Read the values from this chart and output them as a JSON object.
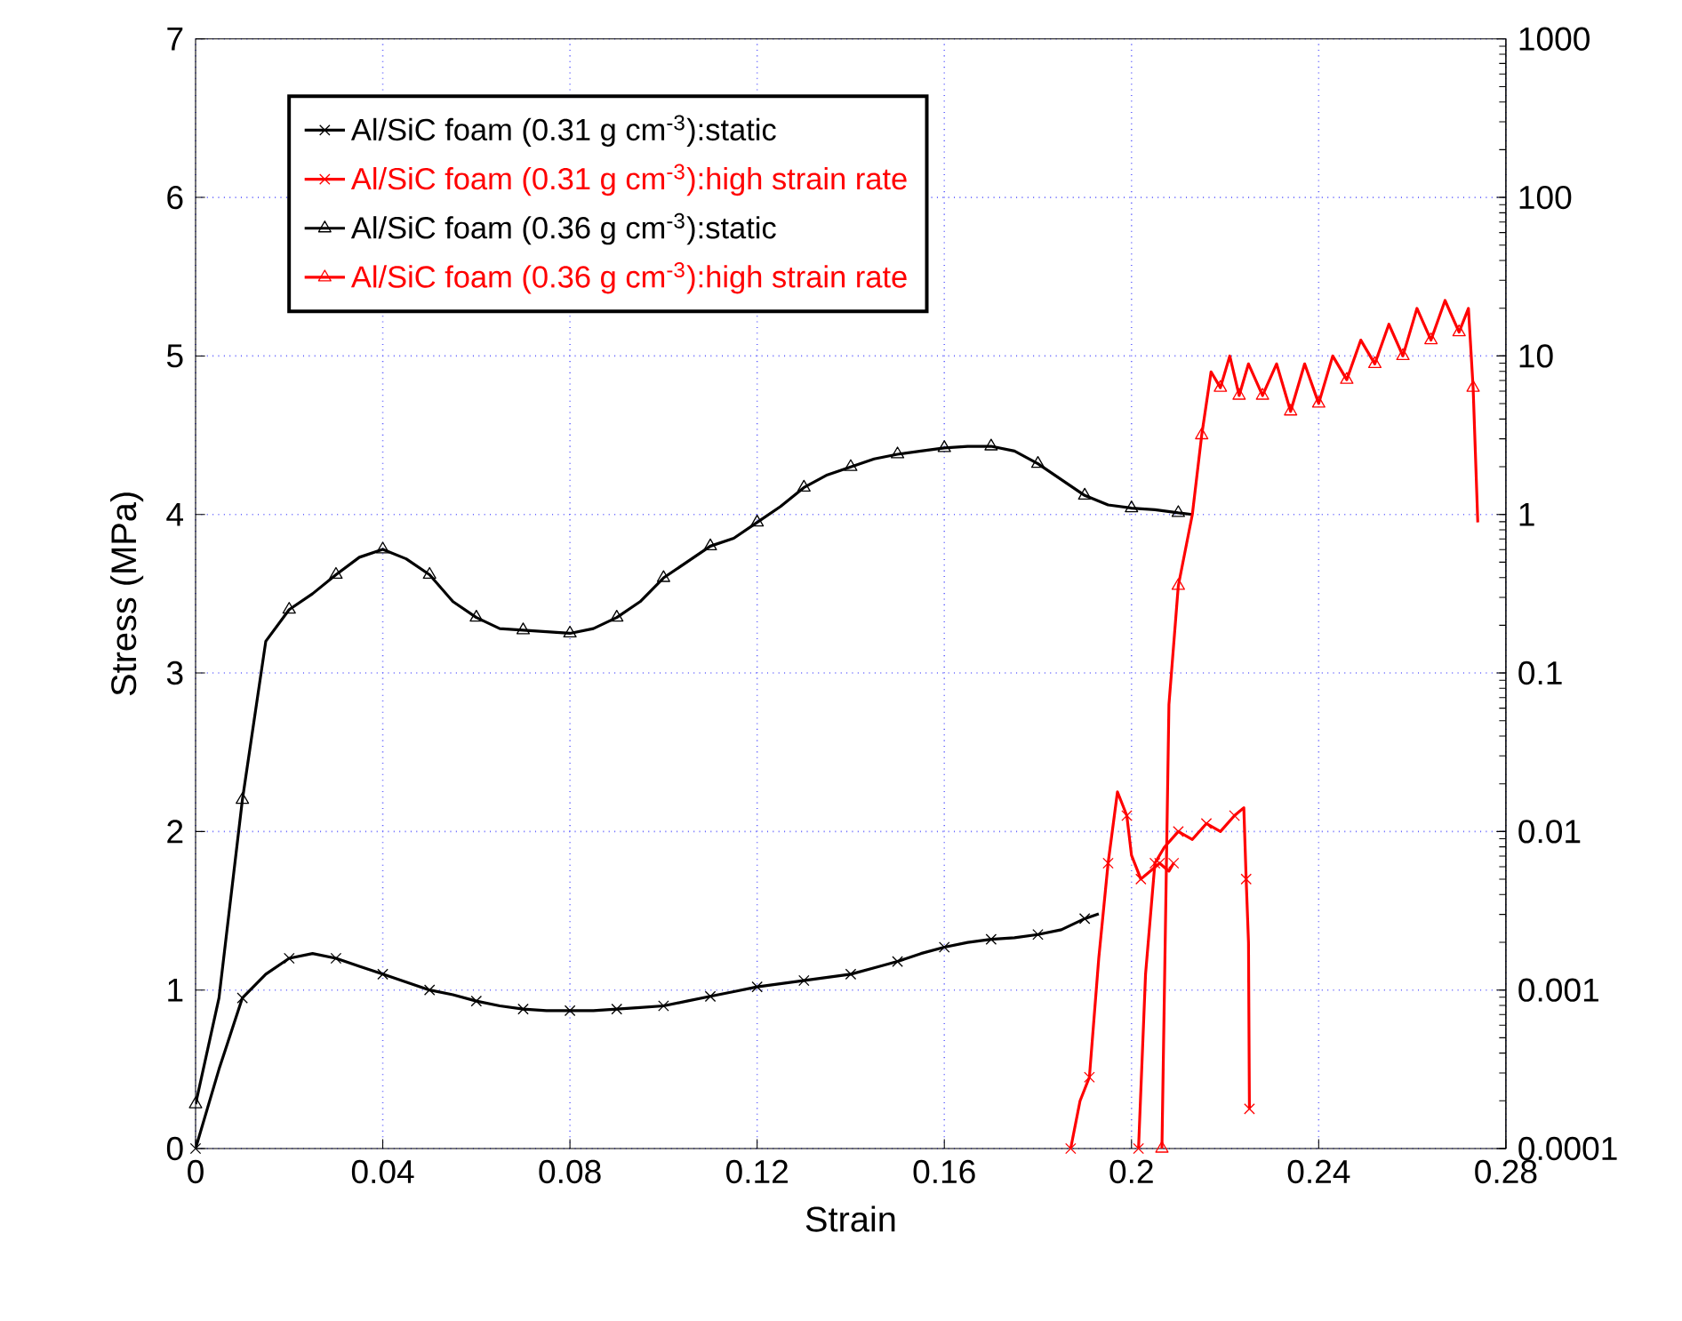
{
  "chart_data": {
    "type": "line",
    "xlabel": "Strain",
    "ylabel": "Stress (MPa)",
    "xlim": [
      0,
      0.28
    ],
    "ylim": [
      0,
      7
    ],
    "xticks": [
      0,
      0.04,
      0.08,
      0.12,
      0.16,
      0.2,
      0.24,
      0.28
    ],
    "yticks": [
      0,
      1,
      2,
      3,
      4,
      5,
      6,
      7
    ],
    "y2lim": [
      0.0001,
      1000
    ],
    "y2ticks": [
      0.0001,
      0.001,
      0.01,
      0.1,
      1,
      10,
      100,
      1000
    ],
    "log": "y2",
    "grid": true,
    "legend": "top left",
    "series": [
      {
        "name": "Al/SiC foam (0.31 g cm$^{-3}$):static",
        "color": "#000000",
        "marker": "cross",
        "x": [
          0,
          0.005,
          0.01,
          0.015,
          0.02,
          0.025,
          0.03,
          0.035,
          0.04,
          0.045,
          0.05,
          0.055,
          0.06,
          0.065,
          0.07,
          0.075,
          0.08,
          0.085,
          0.09,
          0.095,
          0.1,
          0.105,
          0.11,
          0.115,
          0.12,
          0.125,
          0.13,
          0.135,
          0.14,
          0.145,
          0.15,
          0.155,
          0.16,
          0.165,
          0.17,
          0.175,
          0.18,
          0.185,
          0.19,
          0.193
        ],
        "values": [
          0,
          0.5,
          0.95,
          1.1,
          1.2,
          1.23,
          1.2,
          1.15,
          1.1,
          1.05,
          1.0,
          0.97,
          0.93,
          0.9,
          0.88,
          0.87,
          0.87,
          0.87,
          0.88,
          0.89,
          0.9,
          0.93,
          0.96,
          0.99,
          1.02,
          1.04,
          1.06,
          1.08,
          1.1,
          1.14,
          1.18,
          1.23,
          1.27,
          1.3,
          1.32,
          1.33,
          1.35,
          1.38,
          1.45,
          1.48
        ]
      },
      {
        "name": "Al/SiC foam (0.31 g cm$^{-3}$):high strain rate",
        "color": "#ff0000",
        "marker": "cross",
        "x": [
          0.187,
          0.189,
          0.191,
          0.193,
          0.195,
          0.197,
          0.199,
          0.2,
          0.202,
          0.204,
          0.206,
          0.208,
          0.209
        ],
        "values": [
          0,
          0.3,
          0.45,
          1.2,
          1.8,
          2.25,
          2.1,
          1.85,
          1.7,
          1.75,
          1.8,
          1.75,
          1.8
        ]
      },
      {
        "name": "Al/SiC foam (0.36 g cm$^{-3}$):static",
        "color": "#000000",
        "marker": "triangle",
        "x": [
          0,
          0.005,
          0.01,
          0.015,
          0.02,
          0.025,
          0.03,
          0.035,
          0.04,
          0.045,
          0.05,
          0.055,
          0.06,
          0.065,
          0.07,
          0.075,
          0.08,
          0.085,
          0.09,
          0.095,
          0.1,
          0.105,
          0.11,
          0.115,
          0.12,
          0.125,
          0.13,
          0.135,
          0.14,
          0.145,
          0.15,
          0.155,
          0.16,
          0.165,
          0.17,
          0.175,
          0.18,
          0.185,
          0.19,
          0.195,
          0.2,
          0.205,
          0.21,
          0.213
        ],
        "values": [
          0.28,
          0.95,
          2.2,
          3.2,
          3.4,
          3.5,
          3.62,
          3.73,
          3.78,
          3.72,
          3.62,
          3.45,
          3.35,
          3.28,
          3.27,
          3.26,
          3.25,
          3.28,
          3.35,
          3.45,
          3.6,
          3.7,
          3.8,
          3.85,
          3.95,
          4.05,
          4.17,
          4.25,
          4.3,
          4.35,
          4.38,
          4.4,
          4.42,
          4.43,
          4.43,
          4.4,
          4.32,
          4.22,
          4.12,
          4.06,
          4.04,
          4.03,
          4.01,
          4.0
        ]
      },
      {
        "name": "Al/SiC foam (0.36 g cm$^{-3}$):high strain rate",
        "color": "#ff0000",
        "marker": "triangle",
        "x": [
          0.2065,
          0.208,
          0.21,
          0.213,
          0.215,
          0.217,
          0.219,
          0.221,
          0.223,
          0.225,
          0.228,
          0.231,
          0.234,
          0.237,
          0.24,
          0.243,
          0.246,
          0.249,
          0.252,
          0.255,
          0.258,
          0.261,
          0.264,
          0.267,
          0.27,
          0.272,
          0.273,
          0.274
        ],
        "values": [
          0,
          2.8,
          3.55,
          4.0,
          4.5,
          4.9,
          4.8,
          5.0,
          4.75,
          4.95,
          4.75,
          4.95,
          4.65,
          4.95,
          4.7,
          5.0,
          4.85,
          5.1,
          4.95,
          5.2,
          5.0,
          5.3,
          5.1,
          5.35,
          5.15,
          5.3,
          4.8,
          3.95
        ]
      },
      {
        "color": "#ff0000",
        "marker": "cross",
        "x": [
          0.2015,
          0.203,
          0.205,
          0.207,
          0.21,
          0.213,
          0.216,
          0.219,
          0.222,
          0.224,
          0.2245,
          0.225,
          0.2252
        ],
        "values": [
          0,
          1.1,
          1.8,
          1.9,
          2.0,
          1.95,
          2.05,
          2.0,
          2.1,
          2.15,
          1.7,
          1.3,
          0.25
        ]
      }
    ]
  }
}
